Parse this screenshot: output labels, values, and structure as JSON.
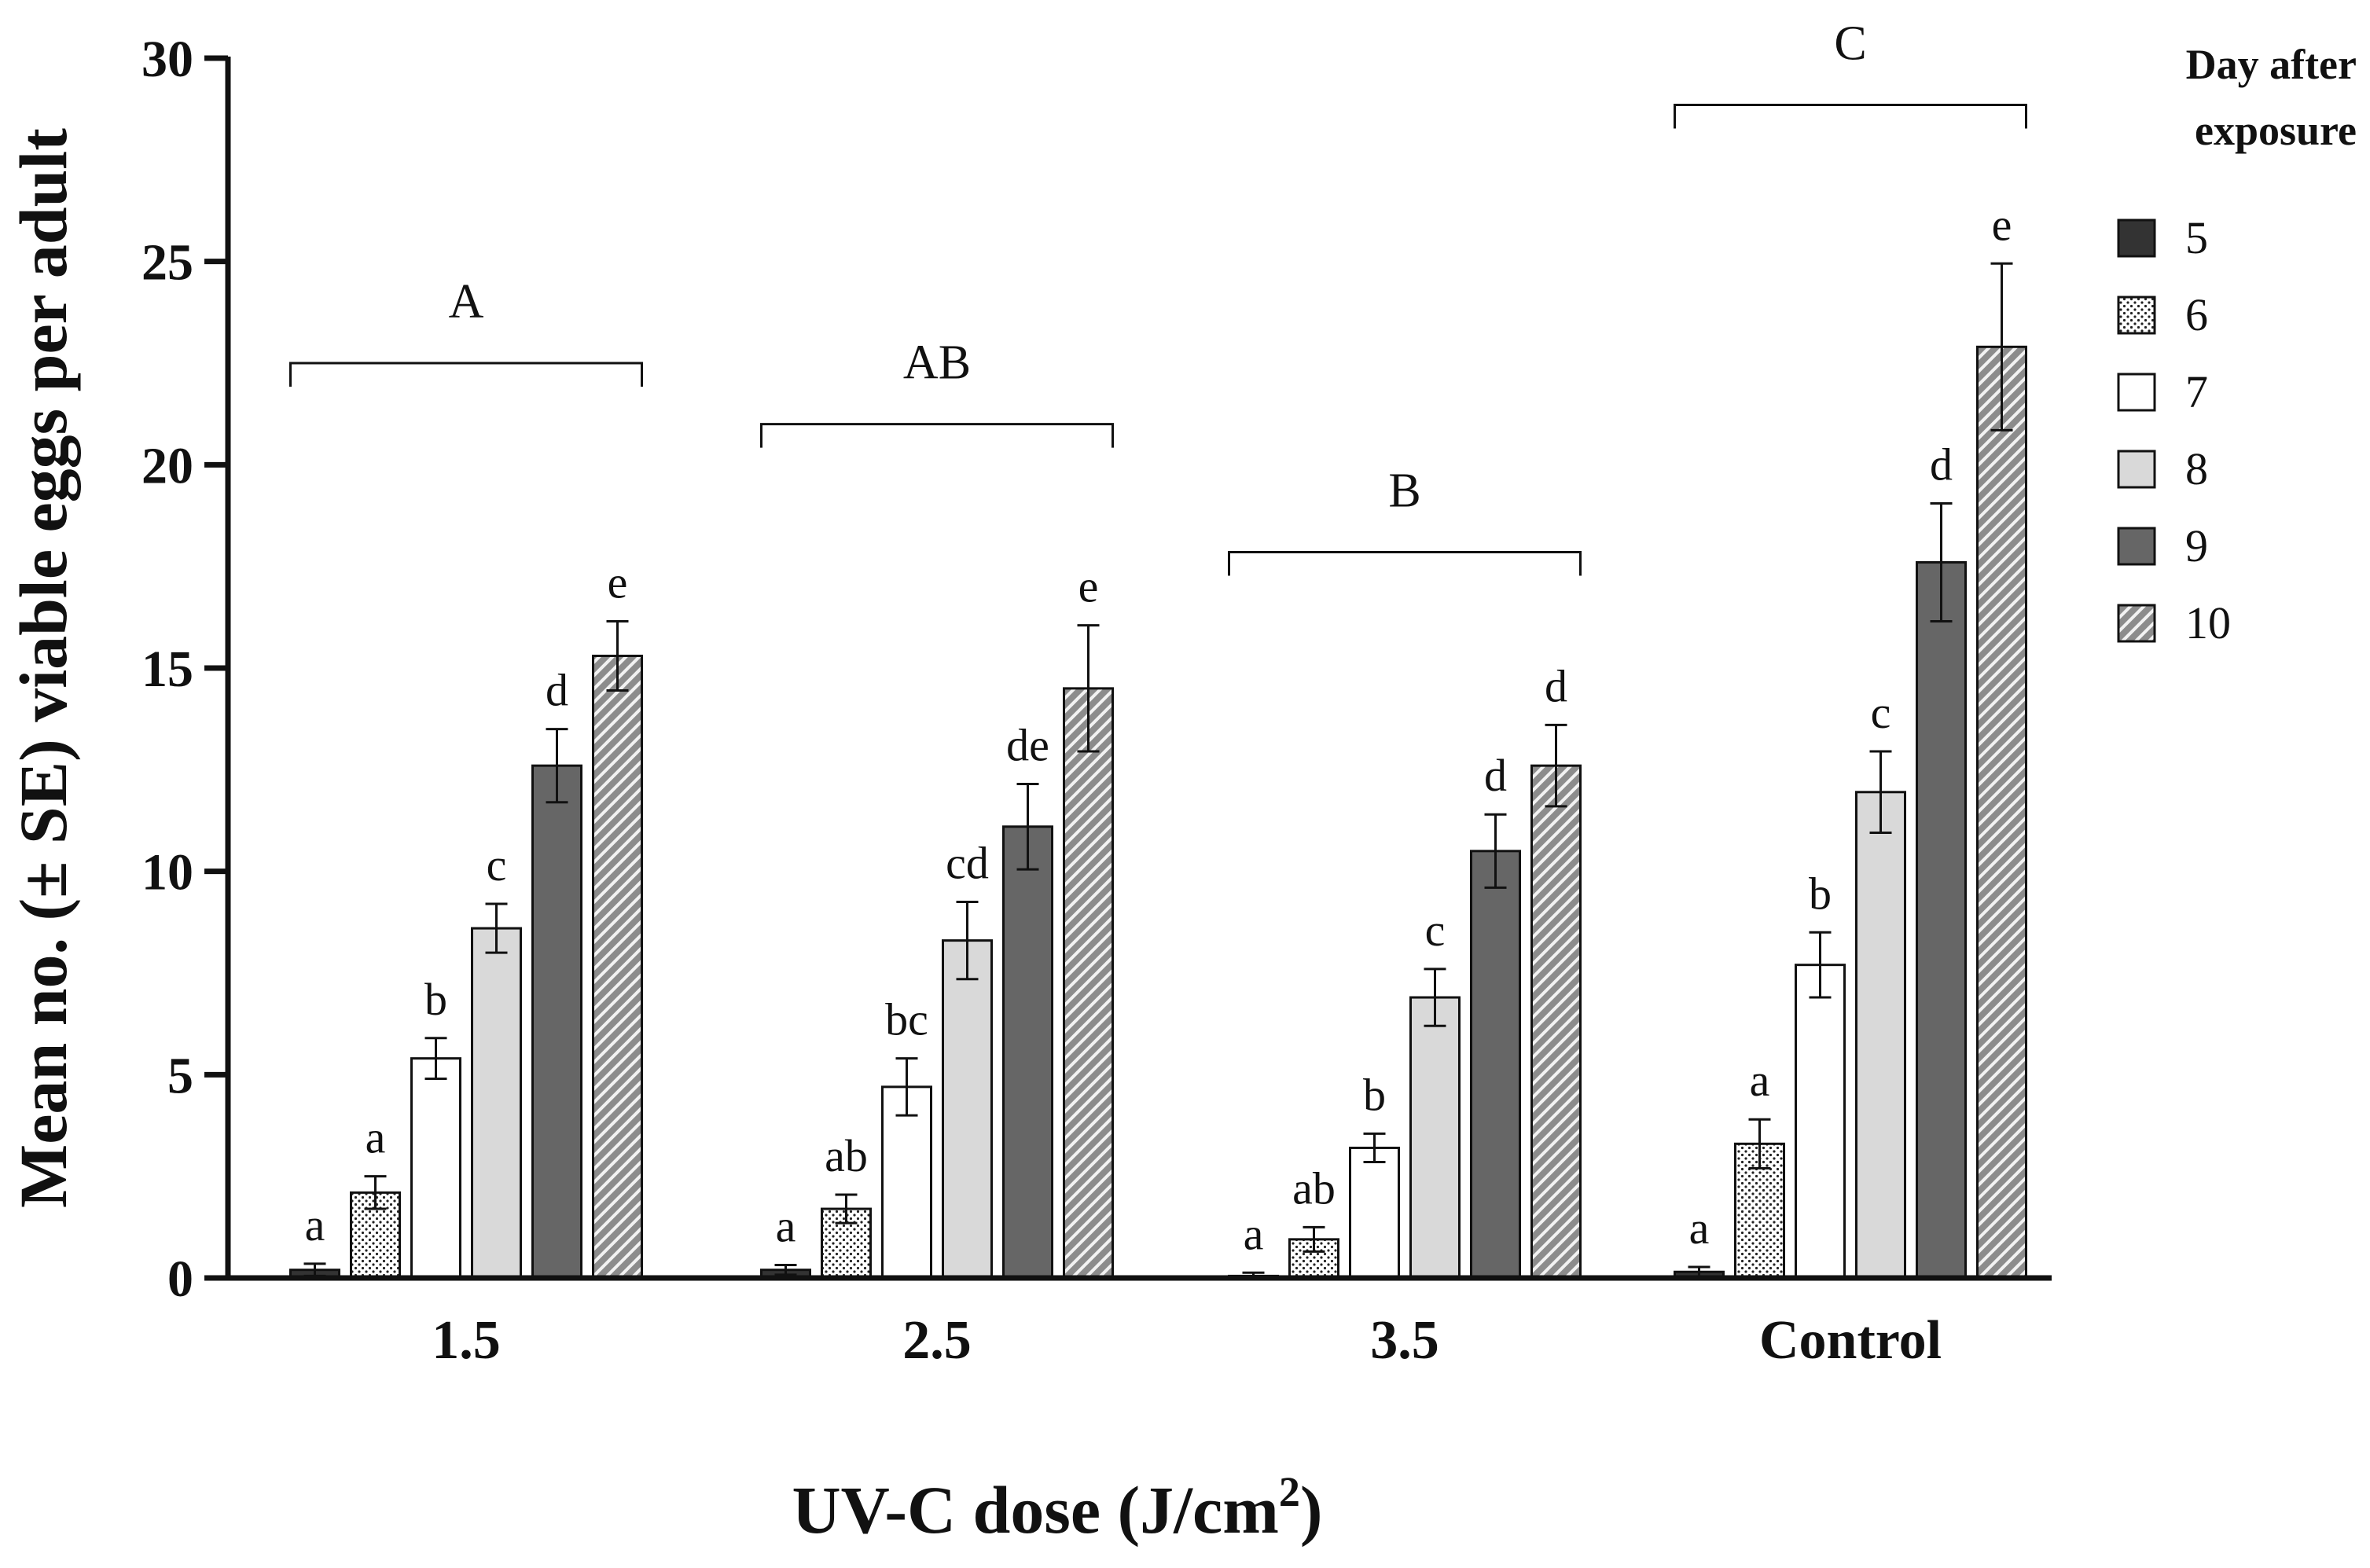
{
  "chart_data": {
    "type": "bar",
    "title": "",
    "ylabel": "Mean no. (± SE) viable eggs per adult",
    "xlabel": {
      "prefix": "UV-C dose (J/cm",
      "superscript": "2",
      "suffix": ")"
    },
    "ylim": [
      0,
      30
    ],
    "yticks": [
      0,
      5,
      10,
      15,
      20,
      25,
      30
    ],
    "categories": [
      "1.5",
      "2.5",
      "3.5",
      "Control"
    ],
    "legend": {
      "title_lines": [
        "Day after",
        "exposure"
      ],
      "position": "top-right"
    },
    "series": [
      {
        "name": "5",
        "pattern": "solid-dark",
        "color": "#333333",
        "values": [
          0.2,
          0.2,
          0.05,
          0.15
        ],
        "se": [
          0.15,
          0.12,
          0.08,
          0.12
        ],
        "letters": [
          "a",
          "a",
          "a",
          "a"
        ]
      },
      {
        "name": "6",
        "pattern": "dotted",
        "color": "#ffffff",
        "values": [
          2.1,
          1.7,
          0.95,
          3.3
        ],
        "se": [
          0.4,
          0.35,
          0.3,
          0.6
        ],
        "letters": [
          "a",
          "ab",
          "ab",
          "a"
        ]
      },
      {
        "name": "7",
        "pattern": "white",
        "color": "#ffffff",
        "values": [
          5.4,
          4.7,
          3.2,
          7.7
        ],
        "se": [
          0.5,
          0.7,
          0.35,
          0.8
        ],
        "letters": [
          "b",
          "bc",
          "b",
          "b"
        ]
      },
      {
        "name": "8",
        "pattern": "light-gray",
        "color": "#d9d9d9",
        "values": [
          8.6,
          8.3,
          6.9,
          11.95
        ],
        "se": [
          0.6,
          0.95,
          0.7,
          1.0
        ],
        "letters": [
          "c",
          "cd",
          "c",
          "c"
        ]
      },
      {
        "name": "9",
        "pattern": "solid-gray",
        "color": "#666666",
        "values": [
          12.6,
          11.1,
          10.5,
          17.6
        ],
        "se": [
          0.9,
          1.05,
          0.9,
          1.45
        ],
        "letters": [
          "d",
          "de",
          "d",
          "d"
        ]
      },
      {
        "name": "10",
        "pattern": "hatched",
        "color": "#8c8c8c",
        "values": [
          15.3,
          14.5,
          12.6,
          22.9
        ],
        "se": [
          0.85,
          1.55,
          1.0,
          2.05
        ],
        "letters": [
          "e",
          "e",
          "d",
          "e"
        ]
      }
    ],
    "group_brackets": [
      {
        "category": "1.5",
        "label": "A",
        "y": 22.5
      },
      {
        "category": "2.5",
        "label": "AB",
        "y": 21.0
      },
      {
        "category": "3.5",
        "label": "B",
        "y": 17.85
      },
      {
        "category": "Control",
        "label": "C",
        "y": 28.85
      }
    ]
  }
}
